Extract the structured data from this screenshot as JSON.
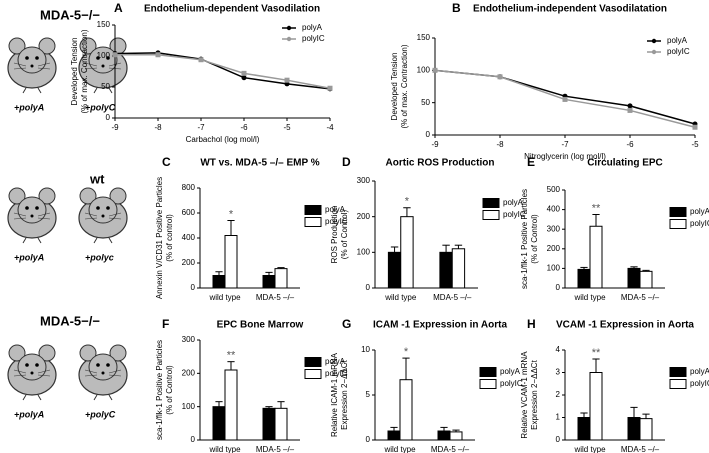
{
  "groups": [
    {
      "title": "MDA-5−/−",
      "left": "+polyA",
      "right": "+polyC"
    },
    {
      "title": "wt",
      "left": "+polyA",
      "right": "+polyc"
    },
    {
      "title": "MDA-5−/−",
      "left": "+polyA",
      "right": "+polyC"
    }
  ],
  "chart_data": [
    {
      "type": "line",
      "label": "A",
      "title": "Endothelium-dependent Vasodilation",
      "x_label": "Carbachol (log mol/l)",
      "y_label": [
        "Developed Tension",
        "(% of max. Contraction)"
      ],
      "x": [
        -9,
        -8,
        -7,
        -6,
        -5,
        -4
      ],
      "xlim": [
        -9,
        -4
      ],
      "xticks": [
        -9,
        -8,
        -7,
        -6,
        -5,
        -4
      ],
      "ylim": [
        0,
        150
      ],
      "yticks": [
        0,
        50,
        100,
        150
      ],
      "series": [
        {
          "name": "polyA",
          "color": "#000000",
          "values": [
            104,
            105,
            95,
            65,
            55,
            47
          ]
        },
        {
          "name": "polyIC",
          "color": "#999999",
          "values": [
            102,
            102,
            94,
            72,
            61,
            48
          ]
        }
      ]
    },
    {
      "type": "line",
      "label": "B",
      "title": "Endothelium-independent Vasodilatation",
      "x_label": "Nitroglycerin (log mol/l)",
      "y_label": [
        "Developed Tension",
        "(% of max. Contraction)"
      ],
      "x": [
        -9,
        -8,
        -7,
        -6,
        -5
      ],
      "xlim": [
        -9,
        -5
      ],
      "xticks": [
        -9,
        -8,
        -7,
        -6,
        -5
      ],
      "ylim": [
        0,
        150
      ],
      "yticks": [
        0,
        50,
        100,
        150
      ],
      "series": [
        {
          "name": "polyA",
          "color": "#000000",
          "values": [
            100,
            90,
            60,
            45,
            17
          ]
        },
        {
          "name": "polyIC",
          "color": "#999999",
          "values": [
            100,
            90,
            55,
            38,
            12
          ]
        }
      ]
    },
    {
      "type": "bar",
      "label": "C",
      "title": "WT vs. MDA-5 –/– EMP %",
      "y_label": [
        "Annexin V/CD31 Positive Particles",
        "(% of control)"
      ],
      "categories": [
        "wild type",
        "MDA-5 –/–"
      ],
      "ylim": [
        0,
        800
      ],
      "yticks": [
        0,
        200,
        400,
        600,
        800
      ],
      "annotation": "*",
      "series": [
        {
          "name": "polyA",
          "color": "#000000",
          "values": [
            100,
            100
          ],
          "errors": [
            30,
            25
          ]
        },
        {
          "name": "polyIC",
          "color": "#ffffff",
          "values": [
            420,
            155
          ],
          "errors": [
            120,
            8
          ]
        }
      ]
    },
    {
      "type": "bar",
      "label": "D",
      "title": "Aortic ROS Production",
      "y_label": [
        "ROS Production",
        "(% of Control)"
      ],
      "categories": [
        "wild type",
        "MDA-5 –/–"
      ],
      "ylim": [
        0,
        300
      ],
      "yticks": [
        0,
        100,
        200,
        300
      ],
      "annotation": "*",
      "series": [
        {
          "name": "polyA",
          "color": "#000000",
          "values": [
            100,
            100
          ],
          "errors": [
            15,
            20
          ]
        },
        {
          "name": "polyIC",
          "color": "#ffffff",
          "values": [
            200,
            110
          ],
          "errors": [
            25,
            10
          ]
        }
      ]
    },
    {
      "type": "bar",
      "label": "E",
      "title": "Circulating EPC",
      "y_label": [
        "sca-1/flk-1 Positive Particles",
        "(% of Control)"
      ],
      "categories": [
        "wild type",
        "MDA-5 –/–"
      ],
      "ylim": [
        0,
        500
      ],
      "yticks": [
        0,
        100,
        200,
        300,
        400,
        500
      ],
      "annotation": "**",
      "series": [
        {
          "name": "polyA",
          "color": "#000000",
          "values": [
            95,
            100
          ],
          "errors": [
            10,
            8
          ]
        },
        {
          "name": "polyIC",
          "color": "#ffffff",
          "values": [
            315,
            85
          ],
          "errors": [
            60,
            5
          ]
        }
      ]
    },
    {
      "type": "bar",
      "label": "F",
      "title": "EPC Bone Marrow",
      "y_label": [
        "sca-1/flk-1 Positive Particles",
        "(% of Control)"
      ],
      "categories": [
        "wild type",
        "MDA-5 –/–"
      ],
      "ylim": [
        0,
        300
      ],
      "yticks": [
        0,
        100,
        200,
        300
      ],
      "annotation": "**",
      "series": [
        {
          "name": "polyA",
          "color": "#000000",
          "values": [
            100,
            95
          ],
          "errors": [
            15,
            5
          ]
        },
        {
          "name": "polyIC",
          "color": "#ffffff",
          "values": [
            210,
            95
          ],
          "errors": [
            25,
            20
          ]
        }
      ]
    },
    {
      "type": "bar",
      "label": "G",
      "title": "ICAM -1 Expression in Aorta",
      "y_label": [
        "Relative ICAM-1 mRNA",
        "Expression 2−ΔΔCt"
      ],
      "categories": [
        "wild type",
        "MDA-5 –/–"
      ],
      "ylim": [
        0,
        10
      ],
      "yticks": [
        0,
        5,
        10
      ],
      "annotation": "*",
      "series": [
        {
          "name": "polyA",
          "color": "#000000",
          "values": [
            1,
            1
          ],
          "errors": [
            0.4,
            0.4
          ]
        },
        {
          "name": "polyIC",
          "color": "#ffffff",
          "values": [
            6.7,
            0.9
          ],
          "errors": [
            2.4,
            0.2
          ]
        }
      ]
    },
    {
      "type": "bar",
      "label": "H",
      "title": "VCAM -1 Expression in Aorta",
      "y_label": [
        "Relative VCAM-1 mRNA",
        "Expression 2−ΔΔCt"
      ],
      "categories": [
        "wild type",
        "MDA-5 –/–"
      ],
      "ylim": [
        0,
        4
      ],
      "yticks": [
        0,
        1,
        2,
        3,
        4
      ],
      "annotation": "**",
      "series": [
        {
          "name": "polyA",
          "color": "#000000",
          "values": [
            1,
            1
          ],
          "errors": [
            0.2,
            0.45
          ]
        },
        {
          "name": "polyIC",
          "color": "#ffffff",
          "values": [
            3,
            0.95
          ],
          "errors": [
            0.6,
            0.2
          ]
        }
      ]
    }
  ]
}
